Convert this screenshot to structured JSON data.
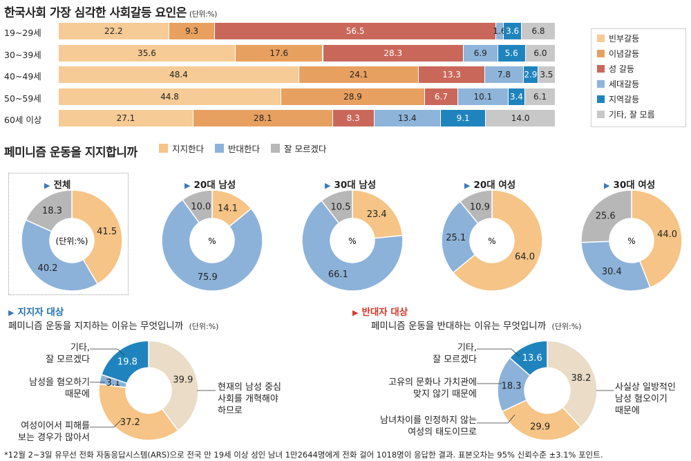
{
  "colors": {
    "bin": "#f6cb95",
    "inyeom": "#e8a060",
    "seong": "#c9685a",
    "sedae": "#8fb4da",
    "jiyeok": "#1f84bd",
    "gita": "#c8c8c8",
    "support": "#f6c486",
    "oppose": "#8cb2d9",
    "unknown": "#b7b7b7",
    "beige": "#eadcc6",
    "blue_dark": "#1f84bd"
  },
  "chart_data": [
    {
      "type": "bar",
      "title": "한국사회 가장 심각한 사회갈등 요인은",
      "unit": "(단위:%)",
      "categories": [
        "19~29세",
        "30~39세",
        "40~49세",
        "50~59세",
        "60세 이상"
      ],
      "series": [
        {
          "name": "빈부갈등",
          "color_key": "bin",
          "values": [
            22.2,
            35.6,
            48.4,
            44.8,
            27.1
          ]
        },
        {
          "name": "이념갈등",
          "color_key": "inyeom",
          "values": [
            9.3,
            17.6,
            24.1,
            28.9,
            28.1
          ]
        },
        {
          "name": "성 갈등",
          "color_key": "seong",
          "values": [
            56.5,
            28.3,
            13.3,
            6.7,
            8.3
          ]
        },
        {
          "name": "세대갈등",
          "color_key": "sedae",
          "values": [
            1.6,
            6.9,
            7.8,
            10.1,
            13.4
          ]
        },
        {
          "name": "지역갈등",
          "color_key": "jiyeok",
          "values": [
            3.6,
            5.6,
            2.9,
            3.4,
            9.1
          ]
        },
        {
          "name": "기타, 잘 모름",
          "color_key": "gita",
          "values": [
            6.8,
            6.0,
            3.5,
            6.1,
            14.0
          ]
        }
      ],
      "stacked": true,
      "orientation": "horizontal",
      "legend": "right"
    },
    {
      "type": "pie",
      "title": "페미니즘 운동을 지지합니까",
      "legend_labels": [
        "지지한다",
        "반대한다",
        "잘 모르겠다"
      ],
      "charts": [
        {
          "name": "전체",
          "center": "(단위:%)",
          "values": [
            41.5,
            40.2,
            18.3
          ]
        },
        {
          "name": "20대 남성",
          "center": "%",
          "values": [
            14.1,
            75.9,
            10.0
          ]
        },
        {
          "name": "30대 남성",
          "center": "%",
          "values": [
            23.4,
            66.1,
            10.5
          ]
        },
        {
          "name": "20대 여성",
          "center": "%",
          "values": [
            64.0,
            25.1,
            10.9
          ]
        },
        {
          "name": "30대 여성",
          "center": "%",
          "values": [
            44.0,
            30.4,
            25.6
          ]
        }
      ]
    },
    {
      "type": "pie",
      "section": "지지자 대상",
      "title": "페미니즘 운동을 지지하는 이유는 무엇입니까",
      "unit": "(단위:%)",
      "slices": [
        {
          "label": "현재의 남성 중심 사회를 개혁해야 하므로",
          "value": 39.9,
          "color_key": "beige"
        },
        {
          "label": "여성이어서 피해를 보는 경우가 많아서",
          "value": 37.2,
          "color_key": "support"
        },
        {
          "label": "남성을 혐오하기 때문에",
          "value": 3.1,
          "color_key": "oppose"
        },
        {
          "label": "기타, 잘 모르겠다",
          "value": 19.8,
          "color_key": "blue_dark"
        }
      ]
    },
    {
      "type": "pie",
      "section": "반대자 대상",
      "title": "페미니즘 운동을 반대하는 이유는 무엇입니까",
      "unit": "(단위:%)",
      "slices": [
        {
          "label": "사실상 일방적인 남성 혐오이기 때문에",
          "value": 38.2,
          "color_key": "beige"
        },
        {
          "label": "남녀차이를 인정하지 않는 여성의 태도이므로",
          "value": 29.9,
          "color_key": "support"
        },
        {
          "label": "고유의 문화나 가치관에 맞지 않기 때문에",
          "value": 18.3,
          "color_key": "oppose"
        },
        {
          "label": "기타, 잘 모르겠다",
          "value": 13.6,
          "color_key": "blue_dark"
        }
      ]
    }
  ],
  "text": {
    "bar_title": "한국사회 가장 심각한 사회갈등 요인은",
    "bar_unit": "(단위:%)",
    "pie_title": "페미니즘 운동을 지지합니까",
    "support_section": "지지자 대상",
    "support_title": "페미니즘 운동을 지지하는 이유는 무엇입니까",
    "support_unit": "(단위:%)",
    "support_ann": [
      [
        "기타,",
        "잘 모르겠다"
      ],
      [
        "남성을 혐오하기",
        "때문에"
      ],
      [
        "여성이어서 피해를",
        "보는 경우가 많아서"
      ],
      [
        "현재의 남성 중심",
        "사회를 개혁해야",
        "하므로"
      ]
    ],
    "oppose_section": "반대자 대상",
    "oppose_title": "페미니즘 운동을 반대하는 이유는 무엇입니까",
    "oppose_unit": "(단위:%)",
    "oppose_ann": [
      [
        "기타,",
        "잘 모르겠다"
      ],
      [
        "고유의 문화나 가치관에",
        "맞지 않기 때문에"
      ],
      [
        "남녀차이를 인정하지 않는",
        "여성의 태도이므로"
      ],
      [
        "사실상 일방적인",
        "남성 혐오이기",
        "때문에"
      ]
    ],
    "footnote": "*12월 2~3일 유무선 전화 자동응답시스템(ARS)으로 전국 만 19세 이상 성인 남녀 1만2644명에게 전화 걸어 1018명이 응답한 결과. 표본오차는 95% 신뢰수준 ±3.1% 포인트."
  }
}
